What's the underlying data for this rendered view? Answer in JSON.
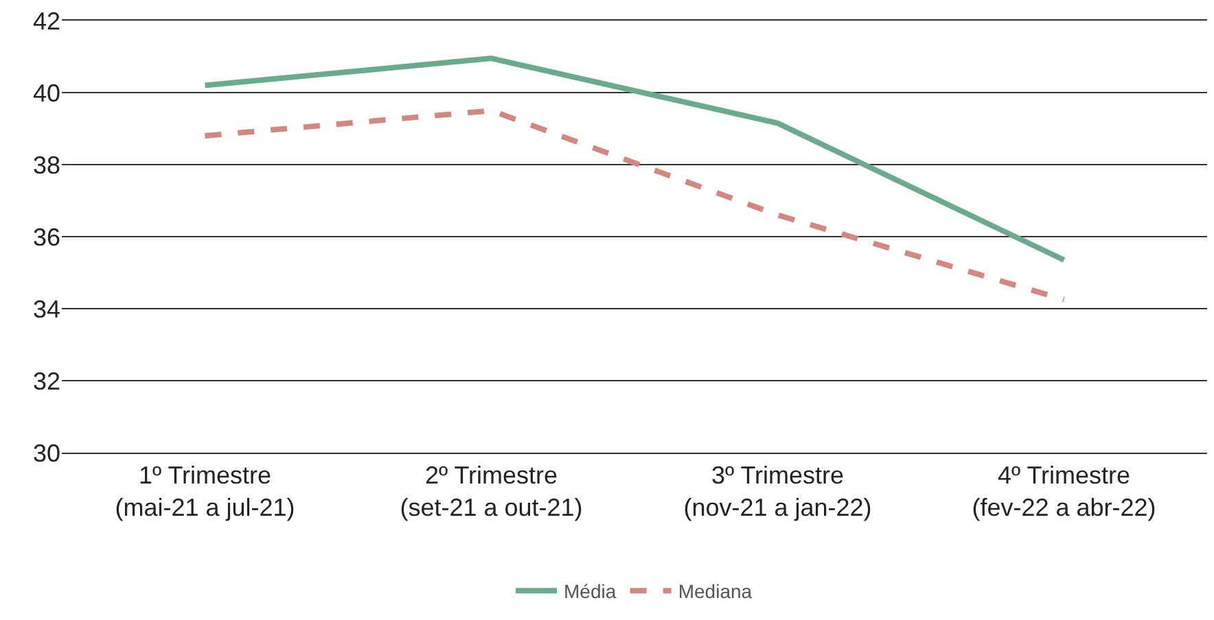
{
  "chart_data": {
    "type": "line",
    "categories": [
      "1º Trimestre\n(mai-21 a jul-21)",
      "2º Trimestre\n(set-21 a out-21)",
      "3º Trimestre\n(nov-21 a jan-22)",
      "4º Trimestre\n(fev-22 a abr-22)"
    ],
    "series": [
      {
        "name": "Média",
        "color": "#6aab8e",
        "line_style": "solid",
        "values": [
          40.2,
          40.95,
          39.15,
          35.35
        ]
      },
      {
        "name": "Mediana",
        "color": "#d4877f",
        "line_style": "dashed",
        "values": [
          38.8,
          39.5,
          36.6,
          34.25
        ]
      }
    ],
    "ylim": [
      30,
      42
    ],
    "yticks": [
      30,
      32,
      34,
      36,
      38,
      40,
      42
    ],
    "grid": "y",
    "legend": "bottom",
    "marker": "none"
  }
}
